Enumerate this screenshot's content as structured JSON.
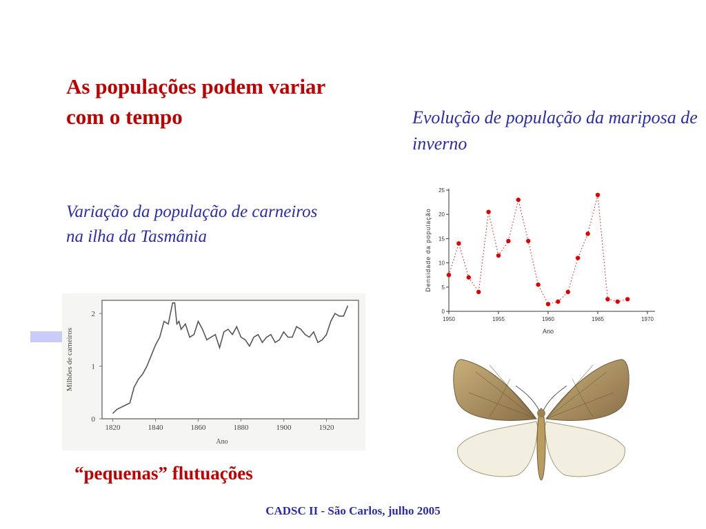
{
  "slide": {
    "title": "As populações podem variar com o tempo",
    "moth_caption": "Evolução de população da mariposa de inverno",
    "sheep_caption": "Variação da população de carneiros na ilha da Tasmânia",
    "flutuacoes": "“pequenas” flutuações",
    "footer": "CADSC II - São Carlos, julho 2005"
  },
  "chart_data": [
    {
      "type": "line",
      "title": "",
      "xlabel": "Ano",
      "ylabel": "Milhões de carneiros",
      "xlim": [
        1815,
        1935
      ],
      "ylim": [
        0,
        2.25
      ],
      "xticks": [
        "1820",
        "1840",
        "1860",
        "1880",
        "1900",
        "1920"
      ],
      "yticks": [
        "0",
        "1",
        "2"
      ],
      "series": [
        {
          "x": [
            1820,
            1822,
            1824,
            1826,
            1828,
            1830,
            1832,
            1834,
            1836,
            1838,
            1840,
            1842,
            1844,
            1846,
            1848,
            1849,
            1850,
            1851,
            1852,
            1854,
            1856,
            1858,
            1860,
            1862,
            1864,
            1866,
            1868,
            1870,
            1872,
            1874,
            1876,
            1878,
            1880,
            1882,
            1884,
            1886,
            1888,
            1890,
            1892,
            1894,
            1896,
            1898,
            1900,
            1902,
            1904,
            1906,
            1908,
            1910,
            1912,
            1914,
            1916,
            1918,
            1920,
            1922,
            1924,
            1926,
            1928,
            1930
          ],
          "y": [
            0.1,
            0.18,
            0.22,
            0.26,
            0.3,
            0.6,
            0.75,
            0.85,
            1.0,
            1.2,
            1.4,
            1.55,
            1.85,
            1.8,
            2.2,
            2.2,
            1.8,
            1.85,
            1.7,
            1.8,
            1.55,
            1.6,
            1.85,
            1.7,
            1.5,
            1.55,
            1.6,
            1.35,
            1.65,
            1.7,
            1.6,
            1.75,
            1.55,
            1.5,
            1.38,
            1.55,
            1.6,
            1.45,
            1.55,
            1.6,
            1.45,
            1.5,
            1.65,
            1.55,
            1.55,
            1.75,
            1.7,
            1.6,
            1.55,
            1.65,
            1.45,
            1.5,
            1.6,
            1.85,
            2.0,
            1.95,
            1.95,
            2.15
          ]
        }
      ]
    },
    {
      "type": "scatter",
      "title": "",
      "xlabel": "Ano",
      "ylabel": "Densidade da população",
      "xlim": [
        1950,
        1970
      ],
      "ylim": [
        0,
        25
      ],
      "xticks": [
        "1950",
        "1955",
        "1960",
        "1965",
        "1970"
      ],
      "yticks": [
        "0",
        "5",
        "10",
        "15",
        "20",
        "25"
      ],
      "series": [
        {
          "x": [
            1950,
            1951,
            1952,
            1953,
            1954,
            1955,
            1956,
            1957,
            1958,
            1959,
            1960,
            1961,
            1962,
            1963,
            1964,
            1965,
            1966,
            1967,
            1968
          ],
          "y": [
            7.5,
            14,
            7,
            4,
            20.5,
            11.5,
            14.5,
            23,
            14.5,
            5.5,
            1.5,
            2,
            4,
            11,
            16,
            24,
            2.5,
            2,
            2.5
          ]
        }
      ]
    }
  ],
  "arrow": {
    "color": "#c8ccf6"
  },
  "colors": {
    "title": "#c00000",
    "caption": "#2b2bb0",
    "moth_points": "#e00000"
  }
}
